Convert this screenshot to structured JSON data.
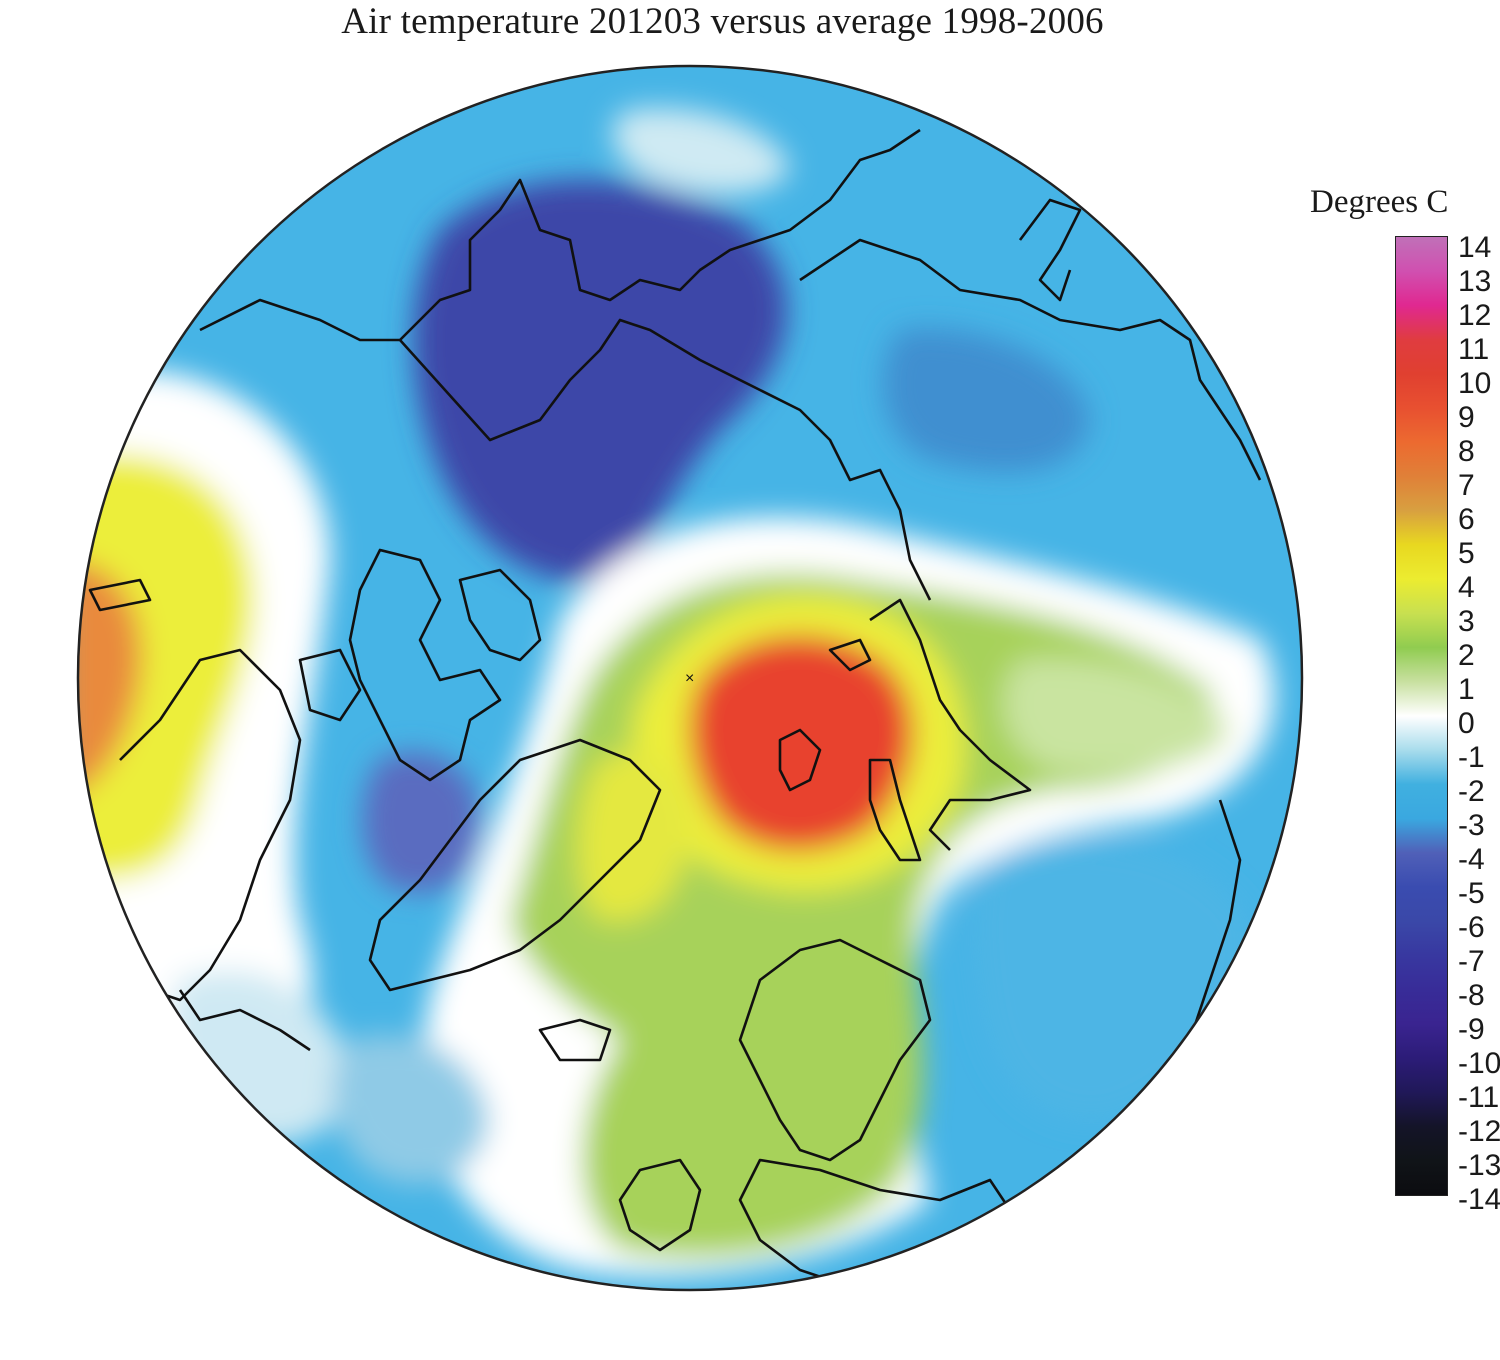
{
  "title": "Air temperature 201203 versus average 1998-2006",
  "legend": {
    "title": "Degrees C",
    "ticks": [
      "14",
      "13",
      "12",
      "11",
      "10",
      "9",
      "8",
      "7",
      "6",
      "5",
      "4",
      "3",
      "2",
      "1",
      "0",
      "-1",
      "-2",
      "-3",
      "-4",
      "-5",
      "-6",
      "-7",
      "-8",
      "-9",
      "-10",
      "-11",
      "-12",
      "-13",
      "-14"
    ],
    "colors": [
      "#c070b8",
      "#d050b0",
      "#e02890",
      "#e03c40",
      "#e04030",
      "#e85030",
      "#ec6a30",
      "#e08038",
      "#d8a040",
      "#e8d820",
      "#ecec30",
      "#c8e050",
      "#90cc50",
      "#c8e0a0",
      "#ffffff",
      "#a8dcec",
      "#40b0e0",
      "#3aa8e0",
      "#5060b8",
      "#3a4cb0",
      "#3a48a8",
      "#3838a0",
      "#382c98",
      "#3a2490",
      "#2c1c78",
      "#201858",
      "#141428",
      "#101418",
      "#0c0c10"
    ]
  },
  "map": {
    "projection": "north polar stereographic",
    "colors": {
      "background": "#46b4e6",
      "deep_negative": "#3c46a8",
      "mid_negative": "#5a6cc0",
      "light_negative": "#9fd8ee",
      "zero": "#ffffff",
      "light_positive": "#c9e4a0",
      "positive": "#a7d25a",
      "warm": "#ecee3a",
      "hot": "#e8432f",
      "orange": "#e98a3c",
      "coastline": "#111111"
    }
  }
}
